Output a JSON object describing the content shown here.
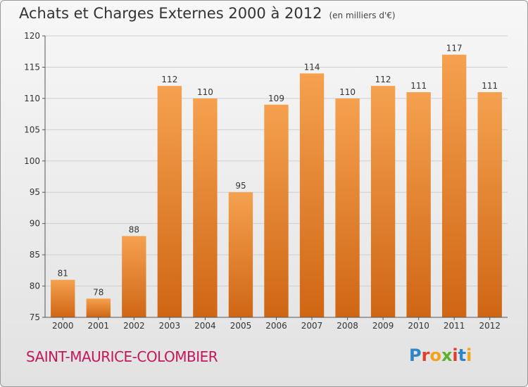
{
  "chart_data": {
    "type": "bar",
    "title": "Achats et Charges Externes 2000 à 2012",
    "subtitle": "(en milliers d'€)",
    "categories": [
      "2000",
      "2001",
      "2002",
      "2003",
      "2004",
      "2005",
      "2006",
      "2007",
      "2008",
      "2009",
      "2010",
      "2011",
      "2012"
    ],
    "values": [
      81,
      78,
      88,
      112,
      110,
      95,
      109,
      114,
      110,
      112,
      111,
      117,
      111
    ],
    "ylim": [
      75,
      120
    ],
    "yticks": [
      75,
      80,
      85,
      90,
      95,
      100,
      105,
      110,
      115,
      120
    ],
    "grid": true,
    "colors": {
      "bar_top": "#f5a14f",
      "bar_bottom": "#cf6614",
      "grid": "#cfcfcf",
      "axis": "#555555"
    }
  },
  "footer": {
    "commune": "SAINT-MAURICE-COLOMBIER",
    "logo": {
      "letters": [
        "P",
        "r",
        "o",
        "x",
        "i",
        "t",
        "i"
      ],
      "colors": [
        "#2e86c8",
        "#e23c2b",
        "#f2a31b",
        "#5cb230",
        "#e23c2b",
        "#2e86c8",
        "#f2a31b"
      ]
    }
  }
}
